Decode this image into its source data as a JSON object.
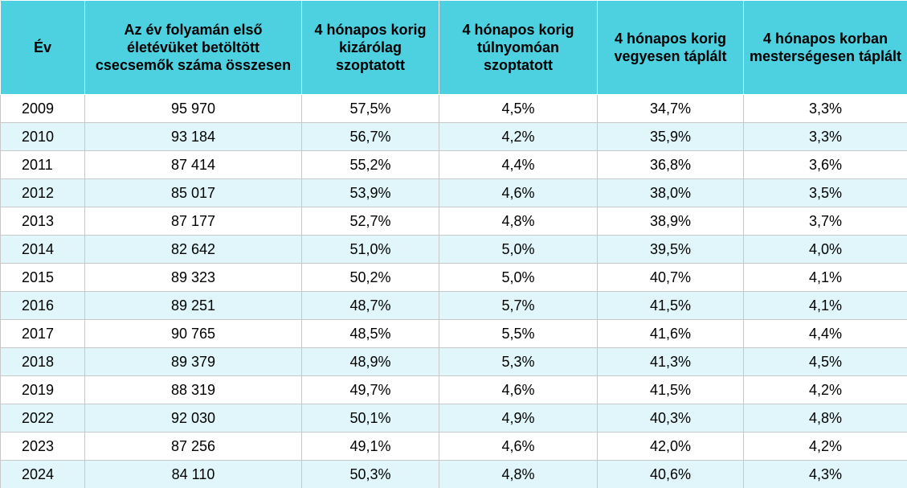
{
  "table": {
    "headers": [
      "Év",
      "Az év folyamán első életévüket betöltött csecsemők száma összesen",
      "4 hónapos korig kizárólag szoptatott",
      "4 hónapos korig túlnyomóan szoptatott",
      "4 hónapos korig vegyesen táplált",
      "4 hónapos korban mesterségesen táplált"
    ],
    "rows": [
      [
        "2009",
        "95 970",
        "57,5%",
        "4,5%",
        "34,7%",
        "3,3%"
      ],
      [
        "2010",
        "93 184",
        "56,7%",
        "4,2%",
        "35,9%",
        "3,3%"
      ],
      [
        "2011",
        "87 414",
        "55,2%",
        "4,4%",
        "36,8%",
        "3,6%"
      ],
      [
        "2012",
        "85 017",
        "53,9%",
        "4,6%",
        "38,0%",
        "3,5%"
      ],
      [
        "2013",
        "87 177",
        "52,7%",
        "4,8%",
        "38,9%",
        "3,7%"
      ],
      [
        "2014",
        "82 642",
        "51,0%",
        "5,0%",
        "39,5%",
        "4,0%"
      ],
      [
        "2015",
        "89 323",
        "50,2%",
        "5,0%",
        "40,7%",
        "4,1%"
      ],
      [
        "2016",
        "89 251",
        "48,7%",
        "5,7%",
        "41,5%",
        "4,1%"
      ],
      [
        "2017",
        "90 765",
        "48,5%",
        "5,5%",
        "41,6%",
        "4,4%"
      ],
      [
        "2018",
        "89 379",
        "48,9%",
        "5,3%",
        "41,3%",
        "4,5%"
      ],
      [
        "2019",
        "88 319",
        "49,7%",
        "4,6%",
        "41,5%",
        "4,2%"
      ],
      [
        "2022",
        "92 030",
        "50,1%",
        "4,9%",
        "40,3%",
        "4,8%"
      ],
      [
        "2023",
        "87 256",
        "49,1%",
        "4,6%",
        "42,0%",
        "4,2%"
      ],
      [
        "2024",
        "84 110",
        "50,3%",
        "4,8%",
        "40,6%",
        "4,3%"
      ]
    ]
  },
  "colors": {
    "header_bg": "#4dd1e0",
    "row_alt_bg": "#e0f6fa",
    "row_bg": "#ffffff",
    "grid": "#c8c8c8"
  }
}
